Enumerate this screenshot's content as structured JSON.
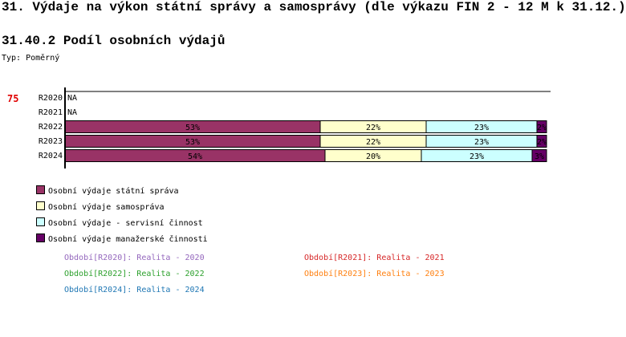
{
  "title": "31. Výdaje na výkon státní správy a samosprávy (dle výkazu FIN 2 - 12 M k 31.12.)",
  "subtitle": "31.40.2 Podíl osobních výdajů",
  "type_label": "Typ: Poměrný",
  "indicator_number": "75",
  "chart_data": {
    "type": "bar",
    "orientation": "horizontal",
    "stacked": "percent",
    "categories": [
      "R2020",
      "R2021",
      "R2022",
      "R2023",
      "R2024"
    ],
    "series": [
      {
        "name": "Osobní výdaje státní správa",
        "color": "#993366",
        "values": [
          null,
          null,
          53,
          53,
          54
        ]
      },
      {
        "name": "Osobní výdaje samospráva",
        "color": "#ffffcc",
        "values": [
          null,
          null,
          22,
          22,
          20
        ]
      },
      {
        "name": "Osobní výdaje - servisní činnost",
        "color": "#ccffff",
        "values": [
          null,
          null,
          23,
          23,
          23
        ]
      },
      {
        "name": "Osobní výdaje manažerské činnosti",
        "color": "#660066",
        "values": [
          null,
          null,
          2,
          2,
          3
        ]
      }
    ],
    "na_label": "NA",
    "xlim": [
      0,
      100
    ],
    "legend_position": "bottom-left"
  },
  "periods": [
    {
      "text": "Období[R2020]: Realita - 2020",
      "color": "#9467bd"
    },
    {
      "text": "Období[R2021]: Realita - 2021",
      "color": "#d62728"
    },
    {
      "text": "Období[R2022]: Realita - 2022",
      "color": "#2ca02c"
    },
    {
      "text": "Období[R2023]: Realita - 2023",
      "color": "#ff7f0e"
    },
    {
      "text": "Období[R2024]: Realita - 2024",
      "color": "#1f77b4"
    }
  ]
}
